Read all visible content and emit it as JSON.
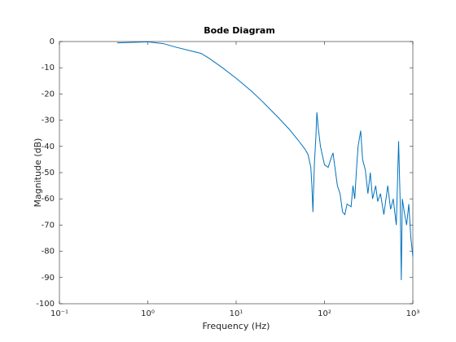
{
  "chart_data": {
    "type": "line",
    "title": "Bode Diagram",
    "xlabel": "Frequency  (Hz)",
    "ylabel": "Magnitude (dB)",
    "xscale": "log",
    "xlim": [
      0.1,
      1000
    ],
    "ylim": [
      -100,
      0
    ],
    "xticks": [
      {
        "value": 0.1,
        "label": "10⁻¹"
      },
      {
        "value": 1,
        "label": "10⁰"
      },
      {
        "value": 10,
        "label": "10¹"
      },
      {
        "value": 100,
        "label": "10²"
      },
      {
        "value": 1000,
        "label": "10³"
      }
    ],
    "yticks": [
      -100,
      -90,
      -80,
      -70,
      -60,
      -50,
      -40,
      -30,
      -20,
      -10,
      0
    ],
    "series": [
      {
        "color": "#0072bd",
        "x": [
          0.45,
          0.7,
          1.0,
          1.5,
          2,
          3,
          4,
          5,
          7,
          10,
          15,
          20,
          30,
          40,
          50,
          60,
          65,
          70,
          72,
          74,
          75,
          77,
          80,
          82,
          85,
          90,
          100,
          110,
          120,
          125,
          130,
          140,
          150,
          160,
          170,
          180,
          200,
          210,
          220,
          230,
          240,
          257,
          270,
          290,
          310,
          330,
          350,
          380,
          400,
          430,
          470,
          520,
          560,
          600,
          650,
          690,
          720,
          740,
          760,
          800,
          850,
          900,
          950,
          1000
        ],
        "values": [
          -0.5,
          -0.3,
          -0.1,
          -0.8,
          -2,
          -3.5,
          -4.5,
          -6.5,
          -10,
          -14,
          -19,
          -23,
          -29,
          -33.5,
          -37.5,
          -41,
          -43,
          -48,
          -55,
          -65,
          -58,
          -46,
          -36,
          -27,
          -33,
          -40,
          -47,
          -48,
          -44,
          -42.5,
          -47,
          -55,
          -58,
          -65,
          -66,
          -62,
          -63,
          -55,
          -60,
          -49,
          -40,
          -34,
          -45,
          -49,
          -58,
          -50,
          -60,
          -55,
          -61,
          -58,
          -66,
          -55,
          -64,
          -60,
          -70,
          -38,
          -62,
          -91,
          -60,
          -65,
          -70,
          -62,
          -75,
          -82
        ]
      }
    ]
  }
}
